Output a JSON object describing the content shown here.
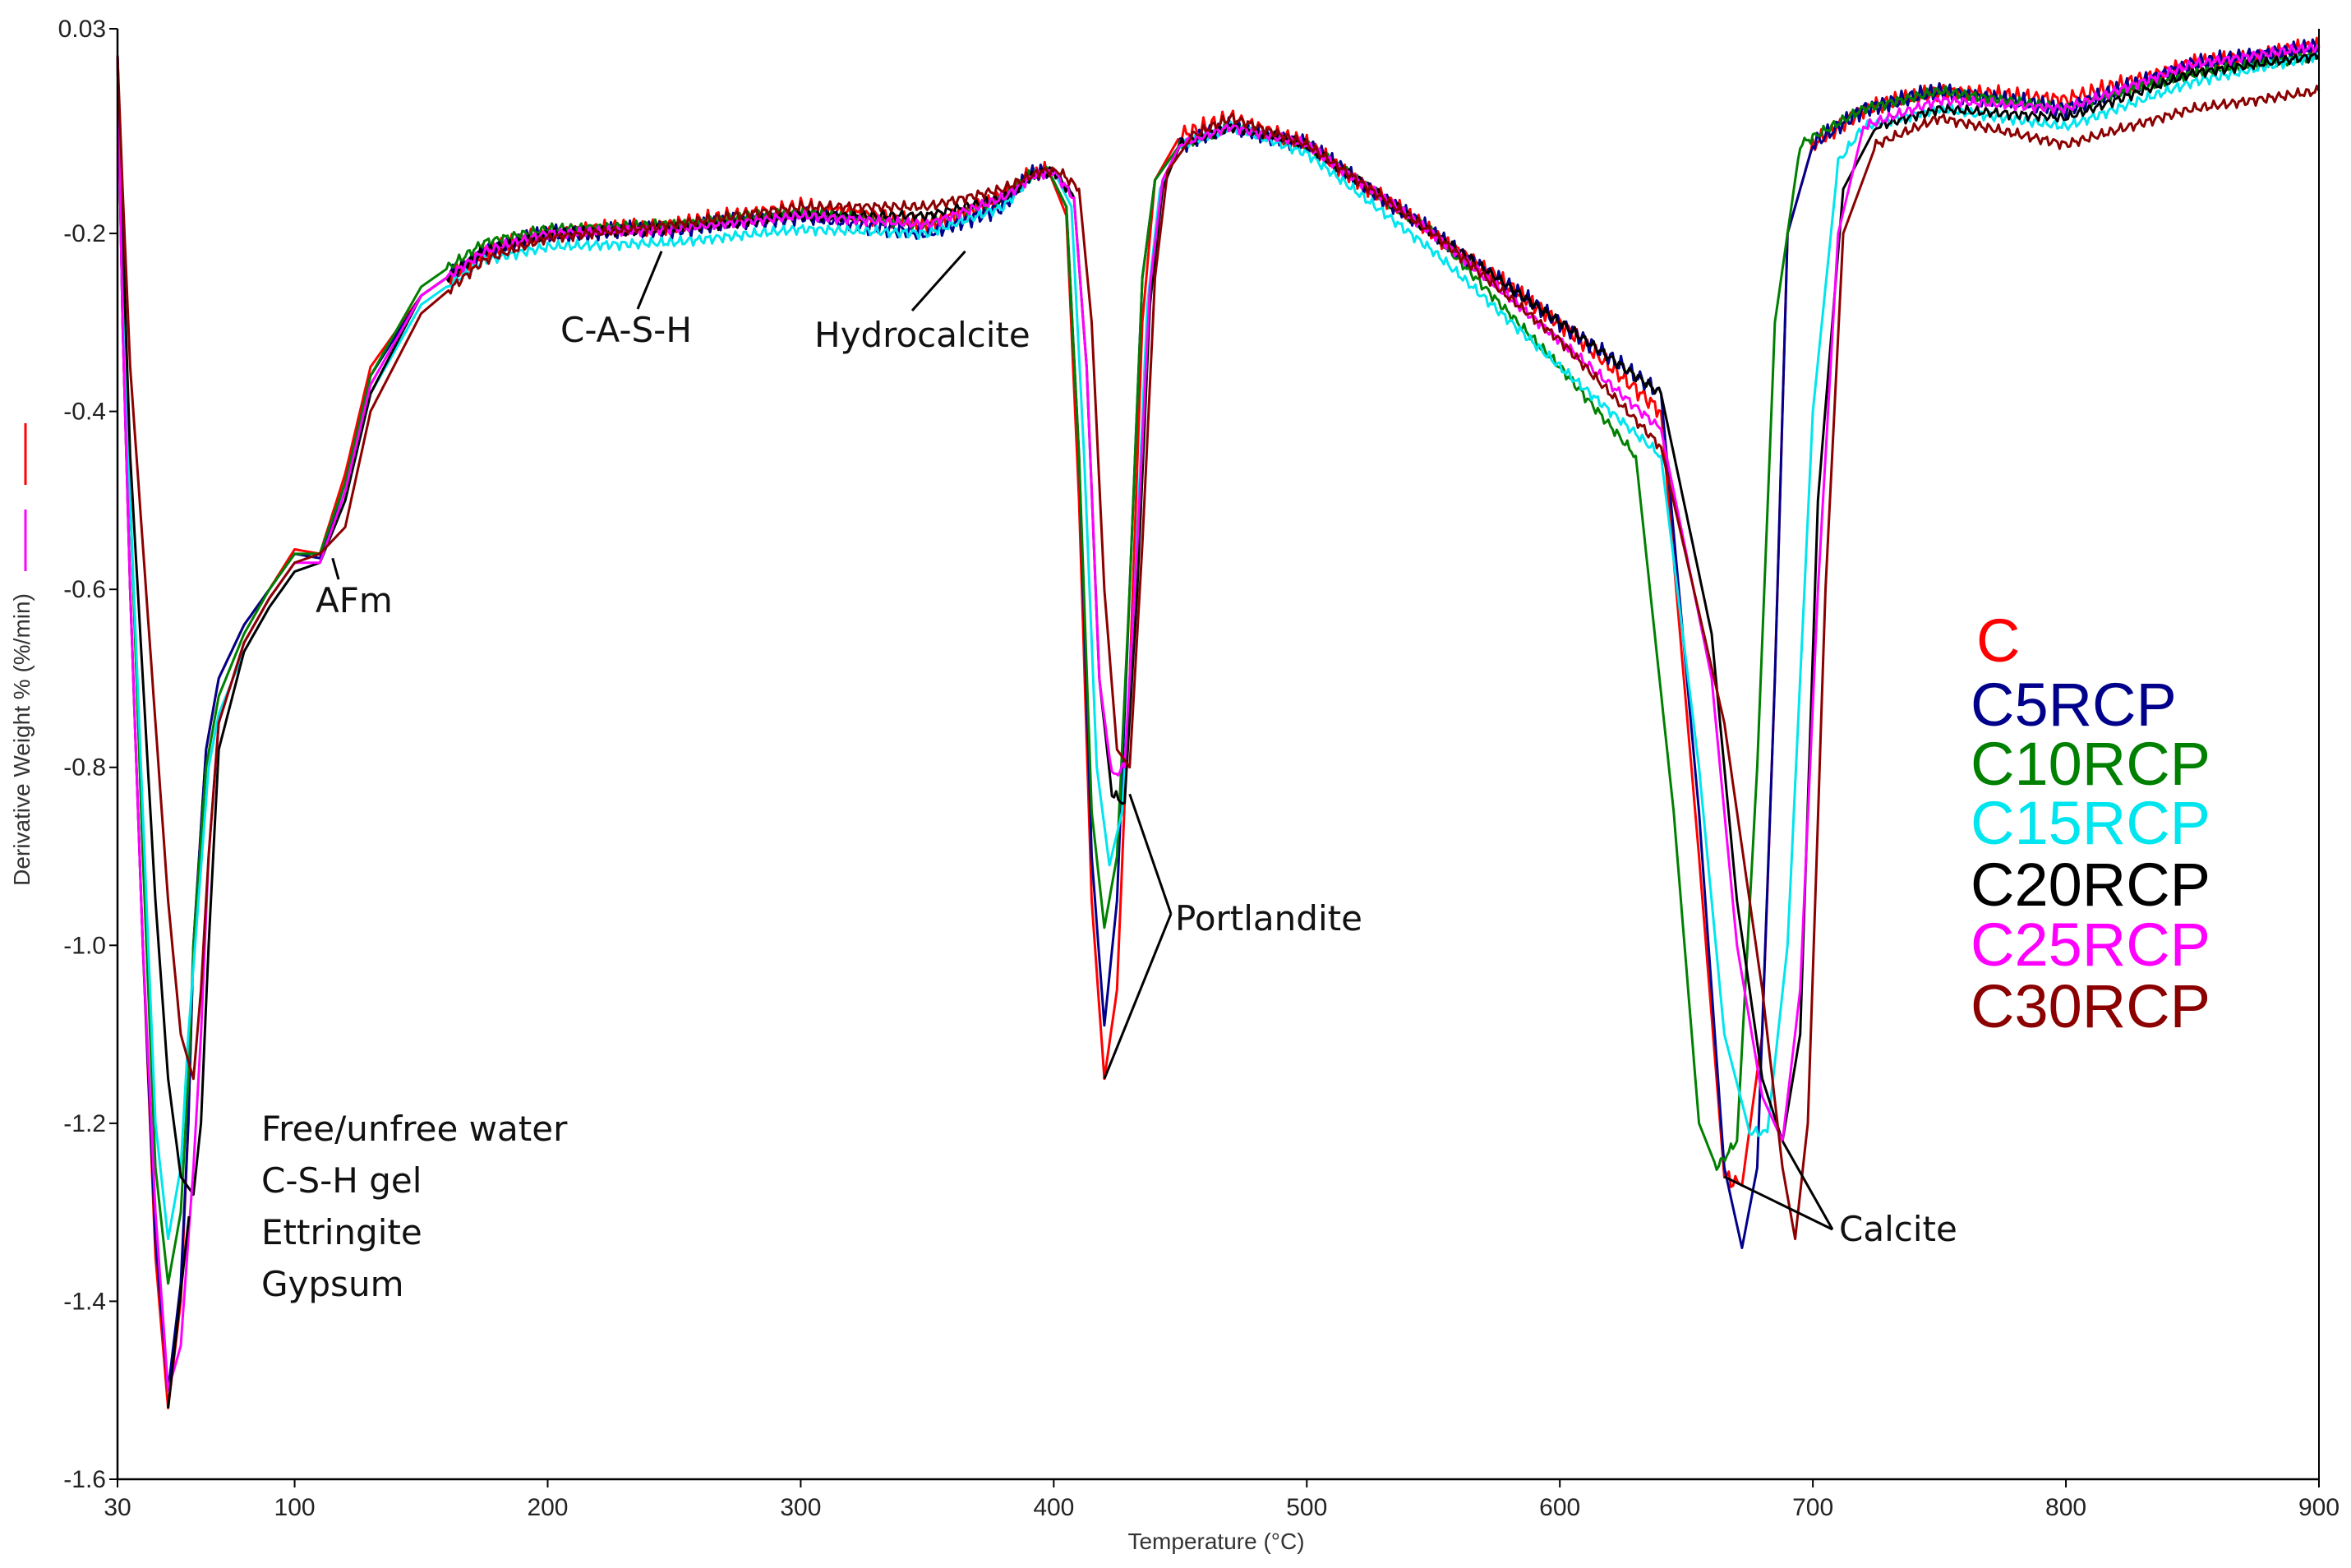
{
  "chart_data": {
    "type": "line",
    "title": "",
    "xlabel": "Temperature (°C)",
    "ylabel": "Derivative Weight % (%/min)",
    "xlim": [
      30,
      900
    ],
    "ylim": [
      -1.6,
      0.03
    ],
    "x_ticks": [
      30,
      100,
      200,
      300,
      400,
      500,
      600,
      700,
      800,
      900
    ],
    "x_tick_labels": [
      "30",
      "100",
      "200",
      "300",
      "400",
      "500",
      "600",
      "700",
      "800",
      "900"
    ],
    "y_ticks": [
      0.03,
      -0.2,
      -0.4,
      -0.6,
      -0.8,
      -1.0,
      -1.2,
      -1.4,
      -1.6
    ],
    "y_tick_labels": [
      "0.03",
      "-0.2",
      "-0.4",
      "-0.6",
      "-0.8",
      "-1.0",
      "-1.2",
      "-1.4",
      "-1.6"
    ],
    "grid": false,
    "legend_position": "right",
    "series": [
      {
        "name": "C",
        "color": "#ff0000",
        "x": [
          30,
          32,
          35,
          40,
          45,
          50,
          55,
          58,
          60,
          65,
          70,
          80,
          90,
          100,
          110,
          120,
          130,
          150,
          175,
          200,
          250,
          300,
          350,
          380,
          390,
          398,
          405,
          410,
          415,
          420,
          425,
          430,
          435,
          440,
          450,
          470,
          500,
          550,
          600,
          640,
          655,
          665,
          672,
          680,
          685,
          690,
          700,
          720,
          750,
          800,
          850,
          900
        ],
        "y": [
          0.0,
          -0.3,
          -0.6,
          -1.0,
          -1.35,
          -1.52,
          -1.4,
          -1.2,
          -1.0,
          -0.78,
          -0.7,
          -0.64,
          -0.6,
          -0.555,
          -0.56,
          -0.47,
          -0.35,
          -0.27,
          -0.22,
          -0.2,
          -0.19,
          -0.17,
          -0.19,
          -0.16,
          -0.135,
          -0.13,
          -0.18,
          -0.5,
          -0.95,
          -1.15,
          -1.05,
          -0.7,
          -0.3,
          -0.14,
          -0.09,
          -0.07,
          -0.1,
          -0.2,
          -0.3,
          -0.4,
          -0.9,
          -1.26,
          -1.27,
          -1.1,
          -0.7,
          -0.2,
          -0.1,
          -0.06,
          -0.04,
          -0.05,
          -0.01,
          0.01
        ]
      },
      {
        "name": "C5RCP",
        "color": "#00008b",
        "x": [
          30,
          32,
          35,
          40,
          45,
          50,
          55,
          58,
          60,
          65,
          70,
          80,
          90,
          100,
          110,
          120,
          130,
          150,
          175,
          200,
          250,
          300,
          350,
          380,
          390,
          398,
          405,
          410,
          415,
          420,
          425,
          430,
          435,
          440,
          450,
          470,
          500,
          550,
          600,
          640,
          655,
          665,
          672,
          678,
          685,
          690,
          700,
          720,
          750,
          800,
          850,
          900
        ],
        "y": [
          0.0,
          -0.3,
          -0.6,
          -1.0,
          -1.33,
          -1.5,
          -1.38,
          -1.2,
          -1.0,
          -0.78,
          -0.7,
          -0.64,
          -0.6,
          -0.56,
          -0.565,
          -0.48,
          -0.36,
          -0.27,
          -0.22,
          -0.2,
          -0.195,
          -0.18,
          -0.2,
          -0.17,
          -0.135,
          -0.13,
          -0.17,
          -0.45,
          -0.9,
          -1.09,
          -0.95,
          -0.6,
          -0.25,
          -0.14,
          -0.1,
          -0.08,
          -0.1,
          -0.2,
          -0.3,
          -0.38,
          -0.85,
          -1.25,
          -1.34,
          -1.25,
          -0.7,
          -0.2,
          -0.1,
          -0.06,
          -0.04,
          -0.06,
          -0.01,
          0.01
        ]
      },
      {
        "name": "C10RCP",
        "color": "#008000",
        "x": [
          30,
          32,
          35,
          40,
          45,
          50,
          55,
          58,
          60,
          65,
          70,
          80,
          90,
          100,
          110,
          120,
          130,
          150,
          175,
          200,
          250,
          300,
          350,
          380,
          390,
          398,
          405,
          410,
          415,
          420,
          425,
          430,
          435,
          440,
          450,
          470,
          500,
          550,
          600,
          630,
          645,
          655,
          662,
          670,
          678,
          685,
          695,
          720,
          750,
          800,
          850,
          900
        ],
        "y": [
          0.0,
          -0.25,
          -0.5,
          -0.9,
          -1.25,
          -1.38,
          -1.3,
          -1.15,
          -1.0,
          -0.8,
          -0.72,
          -0.65,
          -0.6,
          -0.56,
          -0.56,
          -0.48,
          -0.36,
          -0.26,
          -0.21,
          -0.195,
          -0.19,
          -0.175,
          -0.19,
          -0.16,
          -0.135,
          -0.13,
          -0.17,
          -0.45,
          -0.85,
          -0.98,
          -0.9,
          -0.6,
          -0.25,
          -0.14,
          -0.1,
          -0.08,
          -0.1,
          -0.2,
          -0.35,
          -0.45,
          -0.85,
          -1.2,
          -1.25,
          -1.22,
          -0.8,
          -0.3,
          -0.1,
          -0.06,
          -0.04,
          -0.06,
          -0.02,
          0.0
        ]
      },
      {
        "name": "C15RCP",
        "color": "#00e5ee",
        "x": [
          30,
          32,
          35,
          40,
          45,
          50,
          55,
          58,
          62,
          66,
          70,
          80,
          90,
          100,
          110,
          120,
          130,
          150,
          175,
          200,
          250,
          300,
          350,
          380,
          392,
          400,
          407,
          412,
          417,
          422,
          427,
          432,
          437,
          442,
          450,
          470,
          500,
          550,
          600,
          640,
          655,
          665,
          675,
          682,
          690,
          700,
          710,
          720,
          750,
          800,
          850,
          900
        ],
        "y": [
          0.0,
          -0.25,
          -0.5,
          -0.85,
          -1.2,
          -1.33,
          -1.25,
          -1.1,
          -0.95,
          -0.8,
          -0.74,
          -0.67,
          -0.62,
          -0.58,
          -0.57,
          -0.5,
          -0.38,
          -0.28,
          -0.23,
          -0.215,
          -0.21,
          -0.195,
          -0.2,
          -0.17,
          -0.135,
          -0.13,
          -0.17,
          -0.45,
          -0.8,
          -0.91,
          -0.85,
          -0.6,
          -0.28,
          -0.15,
          -0.1,
          -0.08,
          -0.11,
          -0.22,
          -0.35,
          -0.45,
          -0.8,
          -1.1,
          -1.21,
          -1.21,
          -1.0,
          -0.4,
          -0.12,
          -0.08,
          -0.06,
          -0.08,
          -0.03,
          0.0
        ]
      },
      {
        "name": "C20RCP",
        "color": "#000000",
        "x": [
          30,
          32,
          35,
          40,
          45,
          50,
          55,
          60,
          63,
          66,
          70,
          80,
          90,
          100,
          110,
          120,
          130,
          150,
          175,
          200,
          250,
          300,
          350,
          380,
          392,
          400,
          408,
          413,
          418,
          423,
          428,
          433,
          438,
          443,
          450,
          470,
          500,
          550,
          600,
          640,
          660,
          670,
          680,
          688,
          695,
          702,
          712,
          725,
          750,
          800,
          850,
          900
        ],
        "y": [
          0.0,
          -0.2,
          -0.45,
          -0.7,
          -0.95,
          -1.15,
          -1.26,
          -1.28,
          -1.2,
          -1.0,
          -0.78,
          -0.67,
          -0.62,
          -0.58,
          -0.57,
          -0.5,
          -0.38,
          -0.27,
          -0.22,
          -0.2,
          -0.195,
          -0.18,
          -0.18,
          -0.16,
          -0.135,
          -0.13,
          -0.16,
          -0.35,
          -0.7,
          -0.83,
          -0.84,
          -0.6,
          -0.28,
          -0.15,
          -0.1,
          -0.08,
          -0.1,
          -0.2,
          -0.3,
          -0.38,
          -0.65,
          -0.95,
          -1.15,
          -1.22,
          -1.1,
          -0.5,
          -0.15,
          -0.08,
          -0.06,
          -0.07,
          -0.02,
          0.0
        ]
      },
      {
        "name": "C25RCP",
        "color": "#ff00ff",
        "x": [
          30,
          32,
          35,
          40,
          45,
          50,
          55,
          60,
          63,
          66,
          70,
          80,
          90,
          100,
          110,
          120,
          130,
          150,
          175,
          200,
          250,
          300,
          350,
          380,
          392,
          400,
          408,
          413,
          418,
          423,
          428,
          433,
          438,
          443,
          450,
          470,
          500,
          550,
          600,
          640,
          660,
          670,
          680,
          688,
          695,
          702,
          710,
          720,
          750,
          800,
          850,
          900
        ],
        "y": [
          0.0,
          -0.3,
          -0.6,
          -1.0,
          -1.3,
          -1.5,
          -1.45,
          -1.25,
          -1.1,
          -0.9,
          -0.75,
          -0.66,
          -0.61,
          -0.57,
          -0.57,
          -0.49,
          -0.37,
          -0.27,
          -0.22,
          -0.2,
          -0.195,
          -0.18,
          -0.19,
          -0.16,
          -0.135,
          -0.13,
          -0.16,
          -0.35,
          -0.7,
          -0.81,
          -0.8,
          -0.55,
          -0.26,
          -0.14,
          -0.1,
          -0.08,
          -0.1,
          -0.2,
          -0.32,
          -0.42,
          -0.7,
          -1.0,
          -1.17,
          -1.22,
          -1.05,
          -0.6,
          -0.2,
          -0.08,
          -0.05,
          -0.06,
          -0.01,
          0.01
        ]
      },
      {
        "name": "C30RCP",
        "color": "#8b0000",
        "x": [
          30,
          32,
          35,
          40,
          45,
          50,
          55,
          60,
          63,
          66,
          70,
          80,
          90,
          100,
          110,
          120,
          130,
          150,
          175,
          200,
          250,
          300,
          350,
          380,
          395,
          402,
          410,
          415,
          420,
          425,
          430,
          435,
          440,
          445,
          455,
          470,
          500,
          550,
          600,
          640,
          665,
          680,
          688,
          693,
          698,
          705,
          712,
          725,
          750,
          800,
          850,
          900
        ],
        "y": [
          0.0,
          -0.15,
          -0.35,
          -0.55,
          -0.75,
          -0.95,
          -1.1,
          -1.15,
          -1.05,
          -0.9,
          -0.75,
          -0.66,
          -0.61,
          -0.57,
          -0.56,
          -0.53,
          -0.4,
          -0.29,
          -0.23,
          -0.205,
          -0.19,
          -0.17,
          -0.17,
          -0.15,
          -0.13,
          -0.13,
          -0.15,
          -0.3,
          -0.6,
          -0.78,
          -0.8,
          -0.55,
          -0.25,
          -0.13,
          -0.09,
          -0.07,
          -0.1,
          -0.2,
          -0.32,
          -0.44,
          -0.75,
          -1.05,
          -1.25,
          -1.33,
          -1.2,
          -0.6,
          -0.2,
          -0.1,
          -0.07,
          -0.1,
          -0.06,
          -0.04
        ]
      }
    ],
    "annotations": [
      {
        "id": "water",
        "lines": [
          "Free/unfree water",
          "C-S-H gel",
          "Ettringite",
          "Gypsum"
        ],
        "points": [
          [
            50,
            -1.52
          ]
        ]
      },
      {
        "id": "afm",
        "lines": [
          "AFm"
        ],
        "points": [
          [
            115,
            -0.565
          ]
        ]
      },
      {
        "id": "cash",
        "lines": [
          "C-A-S-H"
        ],
        "points": [
          [
            245,
            -0.22
          ]
        ]
      },
      {
        "id": "hydrocalcite",
        "lines": [
          "Hydrocalcite"
        ],
        "points": [
          [
            365,
            -0.22
          ]
        ]
      },
      {
        "id": "portlandite",
        "lines": [
          "Portlandite"
        ],
        "points": [
          [
            430,
            -0.83
          ],
          [
            420,
            -1.15
          ]
        ]
      },
      {
        "id": "calcite",
        "lines": [
          "Calcite"
        ],
        "points": [
          [
            665,
            -1.26
          ],
          [
            688,
            -1.22
          ]
        ]
      }
    ]
  }
}
